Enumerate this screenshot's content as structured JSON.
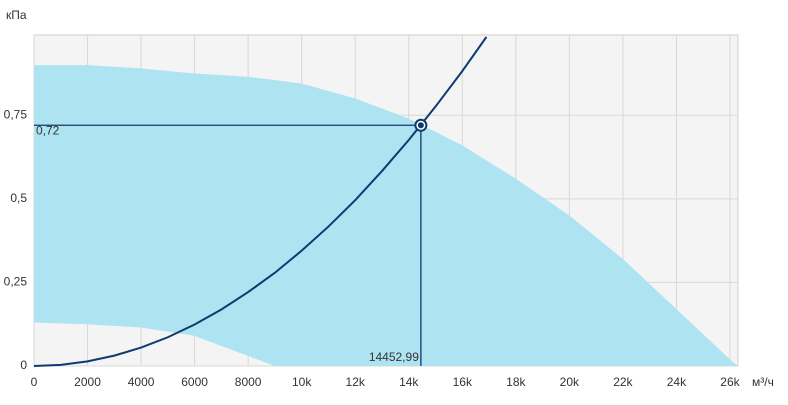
{
  "chart_data": {
    "type": "line",
    "y_label": "кПа",
    "x_label": "м³/ч",
    "xlim": [
      0,
      26300
    ],
    "ylim": [
      0,
      0.99
    ],
    "xticks": [
      0,
      2000,
      4000,
      6000,
      8000,
      {
        "value": 10000,
        "label": "10k"
      },
      {
        "value": 12000,
        "label": "12k"
      },
      {
        "value": 14000,
        "label": "14k"
      },
      {
        "value": 16000,
        "label": "16k"
      },
      {
        "value": 18000,
        "label": "18k"
      },
      {
        "value": 20000,
        "label": "20k"
      },
      {
        "value": 22000,
        "label": "22k"
      },
      {
        "value": 24000,
        "label": "24k"
      },
      {
        "value": 26000,
        "label": "26k"
      }
    ],
    "yticks": [
      0,
      {
        "value": 0.25,
        "label": "0,25"
      },
      {
        "value": 0.5,
        "label": "0,5"
      },
      {
        "value": 0.75,
        "label": "0,75"
      }
    ],
    "grid": true,
    "area": {
      "color": "#aee3f2",
      "upper": {
        "x": [
          0,
          2000,
          4000,
          6000,
          8000,
          10000,
          12000,
          14000,
          16000,
          18000,
          20000,
          22000,
          24000,
          26000,
          26300
        ],
        "values": [
          0.9,
          0.9,
          0.89,
          0.875,
          0.865,
          0.845,
          0.8,
          0.74,
          0.66,
          0.56,
          0.45,
          0.32,
          0.17,
          0.02,
          0
        ]
      },
      "lower": {
        "x": [
          0,
          2000,
          4000,
          6000,
          7000,
          8000,
          9000
        ],
        "values": [
          0.13,
          0.125,
          0.115,
          0.09,
          0.06,
          0.03,
          0
        ]
      }
    },
    "curve": {
      "color": "#0d3b70",
      "x": [
        0,
        1000,
        2000,
        3000,
        4000,
        5000,
        6000,
        7000,
        8000,
        9000,
        10000,
        11000,
        12000,
        13000,
        14000,
        15000,
        16000,
        16900
      ],
      "values": [
        0,
        0.0034,
        0.0138,
        0.031,
        0.055,
        0.086,
        0.124,
        0.169,
        0.221,
        0.279,
        0.345,
        0.417,
        0.496,
        0.583,
        0.676,
        0.776,
        0.882,
        0.984
      ]
    },
    "point": {
      "x": 14452.99,
      "value": 0.72,
      "x_label": "14452,99",
      "value_label": "0,72"
    }
  }
}
